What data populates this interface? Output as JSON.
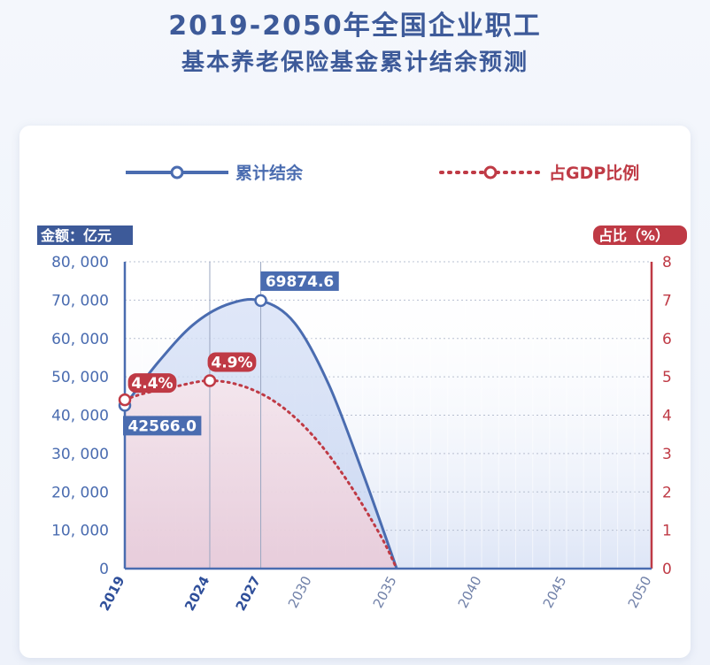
{
  "title_line1": "2019-2050年全国企业职工",
  "title_line2": "基本养老保险基金累计结余预测",
  "legend": {
    "balance": "累计结余",
    "ratio": "占GDP比例"
  },
  "colors": {
    "title": "#3d5a99",
    "balance": "#4a6cb0",
    "ratio": "#bf3a45"
  },
  "chart_data": {
    "type": "line",
    "left_axis_label": "金额：亿元",
    "right_axis_label": "占比（%）",
    "left_ylim": [
      0,
      80000
    ],
    "right_ylim": [
      0,
      8
    ],
    "left_ticks": [
      "80, 000",
      "70, 000",
      "60, 000",
      "50, 000",
      "40, 000",
      "30, 000",
      "20, 000",
      "10, 000",
      "0"
    ],
    "right_ticks": [
      "8",
      "7",
      "6",
      "5",
      "4",
      "3",
      "2",
      "1",
      "0"
    ],
    "x_ticks": [
      "2019",
      "2024",
      "2027",
      "2030",
      "2035",
      "2040",
      "2045",
      "2050"
    ],
    "x_highlight": [
      "2019",
      "2024",
      "2027"
    ],
    "xlim": [
      2019,
      2050
    ],
    "grid": true,
    "series": [
      {
        "name": "累计结余",
        "axis": "left",
        "x": [
          2019,
          2021,
          2023,
          2025,
          2027,
          2029,
          2031,
          2033,
          2035
        ],
        "y": [
          42566.0,
          54000,
          63500,
          68800,
          69874.6,
          64000,
          48000,
          25000,
          0
        ],
        "labels": [
          {
            "x": 2019,
            "text": "42566.0"
          },
          {
            "x": 2027,
            "text": "69874.6"
          }
        ]
      },
      {
        "name": "占GDP比例",
        "axis": "right",
        "x": [
          2019,
          2020,
          2022,
          2024,
          2026,
          2028,
          2030,
          2032,
          2034,
          2035
        ],
        "y": [
          4.4,
          4.55,
          4.75,
          4.9,
          4.75,
          4.3,
          3.5,
          2.35,
          0.9,
          0
        ],
        "labels": [
          {
            "x": 2019,
            "text": "4.4%"
          },
          {
            "x": 2024,
            "text": "4.9%"
          }
        ]
      }
    ]
  }
}
